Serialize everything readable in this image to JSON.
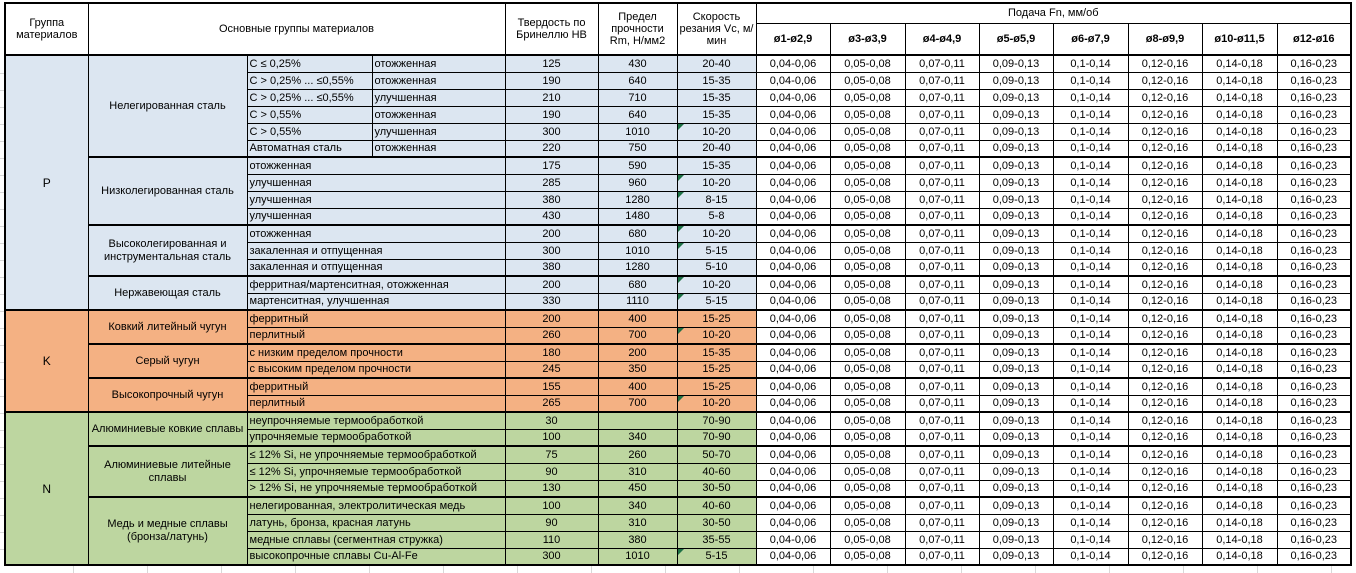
{
  "table": {
    "headers": {
      "group": "Группа материалов",
      "main_groups": "Основные группы материалов",
      "hardness": "Твердость по Бринеллю HB",
      "strength": "Предел прочности Rm, Н/мм2",
      "speed": "Скорость резания Vc, м/мин",
      "feed_title": "Подача Fn, мм/об"
    },
    "feed_columns": [
      "ø1-ø2,9",
      "ø3-ø3,9",
      "ø4-ø4,9",
      "ø5-ø5,9",
      "ø6-ø7,9",
      "ø8-ø9,9",
      "ø10-ø11,5",
      "ø12-ø16"
    ],
    "feed_values": [
      "0,04-0,06",
      "0,05-0,08",
      "0,07-0,11",
      "0,09-0,13",
      "0,1-0,14",
      "0,12-0,16",
      "0,14-0,18",
      "0,16-0,23"
    ],
    "groups": [
      {
        "code": "P",
        "bg": "#dce6f1",
        "subgroups": [
          {
            "name": "Нелегированная сталь",
            "rows": [
              {
                "detail": "C ≤ 0,25%",
                "state": "отожженная",
                "hb": "125",
                "rm": "430",
                "vc": "20-40",
                "flag": false
              },
              {
                "detail": "C > 0,25% ... ≤0,55%",
                "state": "отожженная",
                "hb": "190",
                "rm": "640",
                "vc": "15-35",
                "flag": false
              },
              {
                "detail": "C > 0,25% ... ≤0,55%",
                "state": "улучшенная",
                "hb": "210",
                "rm": "710",
                "vc": "15-35",
                "flag": false
              },
              {
                "detail": "C > 0,55%",
                "state": "отожженная",
                "hb": "190",
                "rm": "640",
                "vc": "15-35",
                "flag": false
              },
              {
                "detail": "C > 0,55%",
                "state": "улучшенная",
                "hb": "300",
                "rm": "1010",
                "vc": "10-20",
                "flag": true
              },
              {
                "detail": "Автоматная сталь",
                "state": "отожженная",
                "hb": "220",
                "rm": "750",
                "vc": "20-40",
                "flag": false
              }
            ]
          },
          {
            "name": "Низколегированная сталь",
            "rows": [
              {
                "detail": "отожженная",
                "state": null,
                "hb": "175",
                "rm": "590",
                "vc": "15-35",
                "flag": false
              },
              {
                "detail": "улучшенная",
                "state": null,
                "hb": "285",
                "rm": "960",
                "vc": "10-20",
                "flag": true
              },
              {
                "detail": "улучшенная",
                "state": null,
                "hb": "380",
                "rm": "1280",
                "vc": "8-15",
                "flag": true
              },
              {
                "detail": "улучшенная",
                "state": null,
                "hb": "430",
                "rm": "1480",
                "vc": "5-8",
                "flag": false
              }
            ]
          },
          {
            "name": "Высоколегированная и инструментальная сталь",
            "rows": [
              {
                "detail": "отожженная",
                "state": null,
                "hb": "200",
                "rm": "680",
                "vc": "10-20",
                "flag": true
              },
              {
                "detail": "закаленная и отпущенная",
                "state": null,
                "hb": "300",
                "rm": "1010",
                "vc": "5-15",
                "flag": true
              },
              {
                "detail": "закаленная и отпущенная",
                "state": null,
                "hb": "380",
                "rm": "1280",
                "vc": "5-10",
                "flag": false
              }
            ]
          },
          {
            "name": "Нержавеющая сталь",
            "rows": [
              {
                "detail": "ферритная/мартенситная, отожженная",
                "state": null,
                "hb": "200",
                "rm": "680",
                "vc": "10-20",
                "flag": true
              },
              {
                "detail": "мартенситная, улучшенная",
                "state": null,
                "hb": "330",
                "rm": "1110",
                "vc": "5-15",
                "flag": true
              }
            ]
          }
        ]
      },
      {
        "code": "K",
        "bg": "#f4b183",
        "subgroups": [
          {
            "name": "Ковкий литейный чугун",
            "rows": [
              {
                "detail": "ферритный",
                "state": null,
                "hb": "200",
                "rm": "400",
                "vc": "15-25",
                "flag": false
              },
              {
                "detail": "перлитный",
                "state": null,
                "hb": "260",
                "rm": "700",
                "vc": "10-20",
                "flag": true
              }
            ]
          },
          {
            "name": "Серый чугун",
            "rows": [
              {
                "detail": "с низким пределом прочности",
                "state": null,
                "hb": "180",
                "rm": "200",
                "vc": "15-35",
                "flag": false
              },
              {
                "detail": "с высоким пределом прочности",
                "state": null,
                "hb": "245",
                "rm": "350",
                "vc": "15-25",
                "flag": false
              }
            ]
          },
          {
            "name": "Высокопрочный чугун",
            "rows": [
              {
                "detail": "ферритный",
                "state": null,
                "hb": "155",
                "rm": "400",
                "vc": "15-25",
                "flag": false
              },
              {
                "detail": "перлитный",
                "state": null,
                "hb": "265",
                "rm": "700",
                "vc": "10-20",
                "flag": true
              }
            ]
          }
        ]
      },
      {
        "code": "N",
        "bg": "#bdd6a0",
        "subgroups": [
          {
            "name": "Алюминиевые ковкие сплавы",
            "rows": [
              {
                "detail": "неупрочняемые термообработкой",
                "state": null,
                "hb": "30",
                "rm": "",
                "vc": "70-90",
                "flag": false
              },
              {
                "detail": "упрочняемые термообработкой",
                "state": null,
                "hb": "100",
                "rm": "340",
                "vc": "70-90",
                "flag": false
              }
            ]
          },
          {
            "name": "Алюминиевые литейные сплавы",
            "rows": [
              {
                "detail": "≤ 12% Si, не упрочняемые термообработкой",
                "state": null,
                "hb": "75",
                "rm": "260",
                "vc": "50-70",
                "flag": false
              },
              {
                "detail": "≤ 12% Si, упрочняемые термообработкой",
                "state": null,
                "hb": "90",
                "rm": "310",
                "vc": "40-60",
                "flag": false
              },
              {
                "detail": "> 12% Si, не упрочняемые термообработкой",
                "state": null,
                "hb": "130",
                "rm": "450",
                "vc": "30-50",
                "flag": false
              }
            ]
          },
          {
            "name": "Медь и медные сплавы (бронза/латунь)",
            "rows": [
              {
                "detail": "нелегированная, электролитическая медь",
                "state": null,
                "hb": "100",
                "rm": "340",
                "vc": "40-60",
                "flag": false
              },
              {
                "detail": "латунь, бронза, красная латунь",
                "state": null,
                "hb": "90",
                "rm": "310",
                "vc": "30-50",
                "flag": false
              },
              {
                "detail": "медные сплавы (сегментная стружка)",
                "state": null,
                "hb": "110",
                "rm": "380",
                "vc": "35-55",
                "flag": false
              },
              {
                "detail": "высокопрочные сплавы Cu-Al-Fe",
                "state": null,
                "hb": "300",
                "rm": "1010",
                "vc": "5-15",
                "flag": true
              }
            ]
          }
        ]
      }
    ]
  },
  "colors": {
    "group_p": "#dce6f1",
    "group_k": "#f4b183",
    "group_n": "#bdd6a0",
    "error_indicator": "#1e7145",
    "border": "#000000",
    "feed_cell_bg": "#ffffff"
  }
}
